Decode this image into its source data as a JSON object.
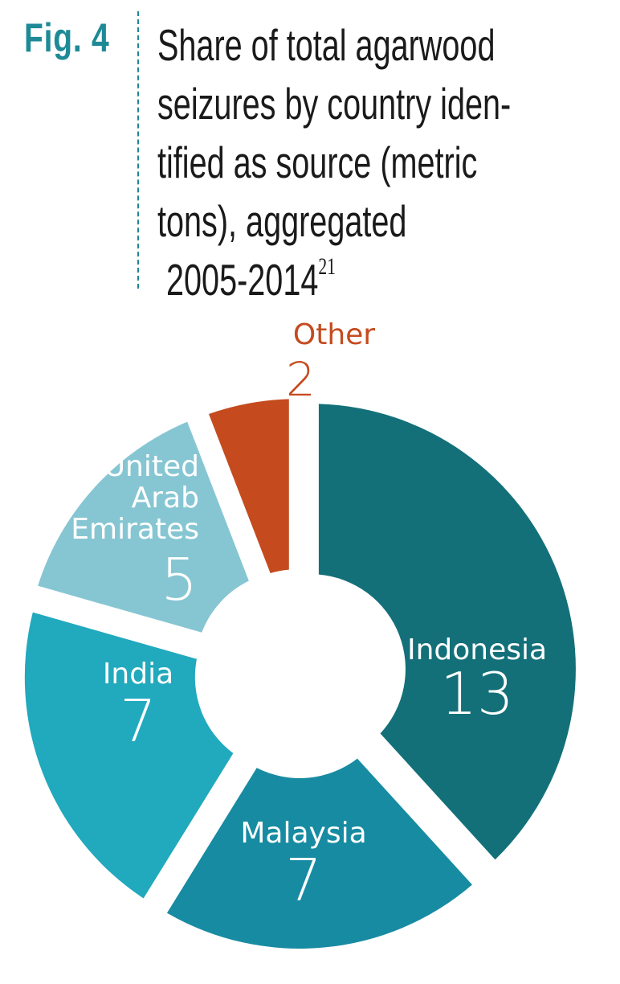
{
  "header": {
    "fig_label": "Fig. 4",
    "title_lines": [
      "Share of total agarwood",
      "seizures by country iden-",
      "tified as source (metric",
      "tons), aggregated",
      " 2005-2014"
    ],
    "footnote_ref": "21"
  },
  "chart_data": {
    "type": "pie",
    "donut": true,
    "title": "Share of total agarwood seizures by country identified as source (metric tons), aggregated 2005-2014",
    "unit": "metric tons",
    "slices": [
      {
        "label": "Indonesia",
        "value": 13,
        "color": "#137079"
      },
      {
        "label": "Malaysia",
        "value": 7,
        "color": "#178ba2"
      },
      {
        "label": "India",
        "value": 7,
        "color": "#21a9bd"
      },
      {
        "label": "United Arab Emirates",
        "value": 5,
        "color": "#86c6d3"
      },
      {
        "label": "Other",
        "value": 2,
        "color": "#c54b1f"
      }
    ],
    "labels": {
      "Indonesia": {
        "lines": [
          "Indonesia"
        ],
        "value": "13"
      },
      "Malaysia": {
        "lines": [
          "Malaysia"
        ],
        "value": "7"
      },
      "India": {
        "lines": [
          "India"
        ],
        "value": "7"
      },
      "United Arab Emirates": {
        "lines": [
          "United",
          "Arab",
          "Emirates"
        ],
        "value": "5"
      },
      "Other": {
        "lines": [
          "Other"
        ],
        "value": "2"
      }
    }
  }
}
